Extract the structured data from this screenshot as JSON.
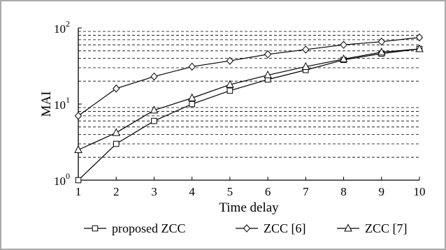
{
  "chart_data": {
    "type": "line",
    "title": "",
    "xlabel": "Time delay",
    "ylabel": "MAI",
    "x": [
      1,
      2,
      3,
      4,
      5,
      6,
      7,
      8,
      9,
      10
    ],
    "x_tick_labels": [
      "1",
      "2",
      "3",
      "4",
      "5",
      "6",
      "7",
      "8",
      "9",
      "10"
    ],
    "xlim": [
      1,
      10
    ],
    "yscale": "log",
    "ylim": [
      1,
      100
    ],
    "y_ticks": [
      {
        "value": 1,
        "base": "10",
        "exp": "0"
      },
      {
        "value": 10,
        "base": "10",
        "exp": "1"
      },
      {
        "value": 100,
        "base": "10",
        "exp": "2"
      }
    ],
    "grid": "dashed horizontal at minor log ticks",
    "legend_position": "bottom",
    "series": [
      {
        "name": "proposed ZCC",
        "marker": "square",
        "values": [
          1.0,
          3.0,
          6.0,
          10.0,
          15.0,
          21.0,
          28.0,
          38.0,
          46.0,
          53.0
        ]
      },
      {
        "name": "ZCC [6]",
        "marker": "diamond",
        "values": [
          7.0,
          16.0,
          23.0,
          31.0,
          37.0,
          45.0,
          52.0,
          60.0,
          66.0,
          75.0
        ]
      },
      {
        "name": "ZCC [7]",
        "marker": "triangle",
        "values": [
          2.5,
          4.2,
          8.3,
          12.0,
          18.0,
          24.0,
          31.0,
          39.0,
          48.0,
          53.0
        ]
      }
    ]
  }
}
